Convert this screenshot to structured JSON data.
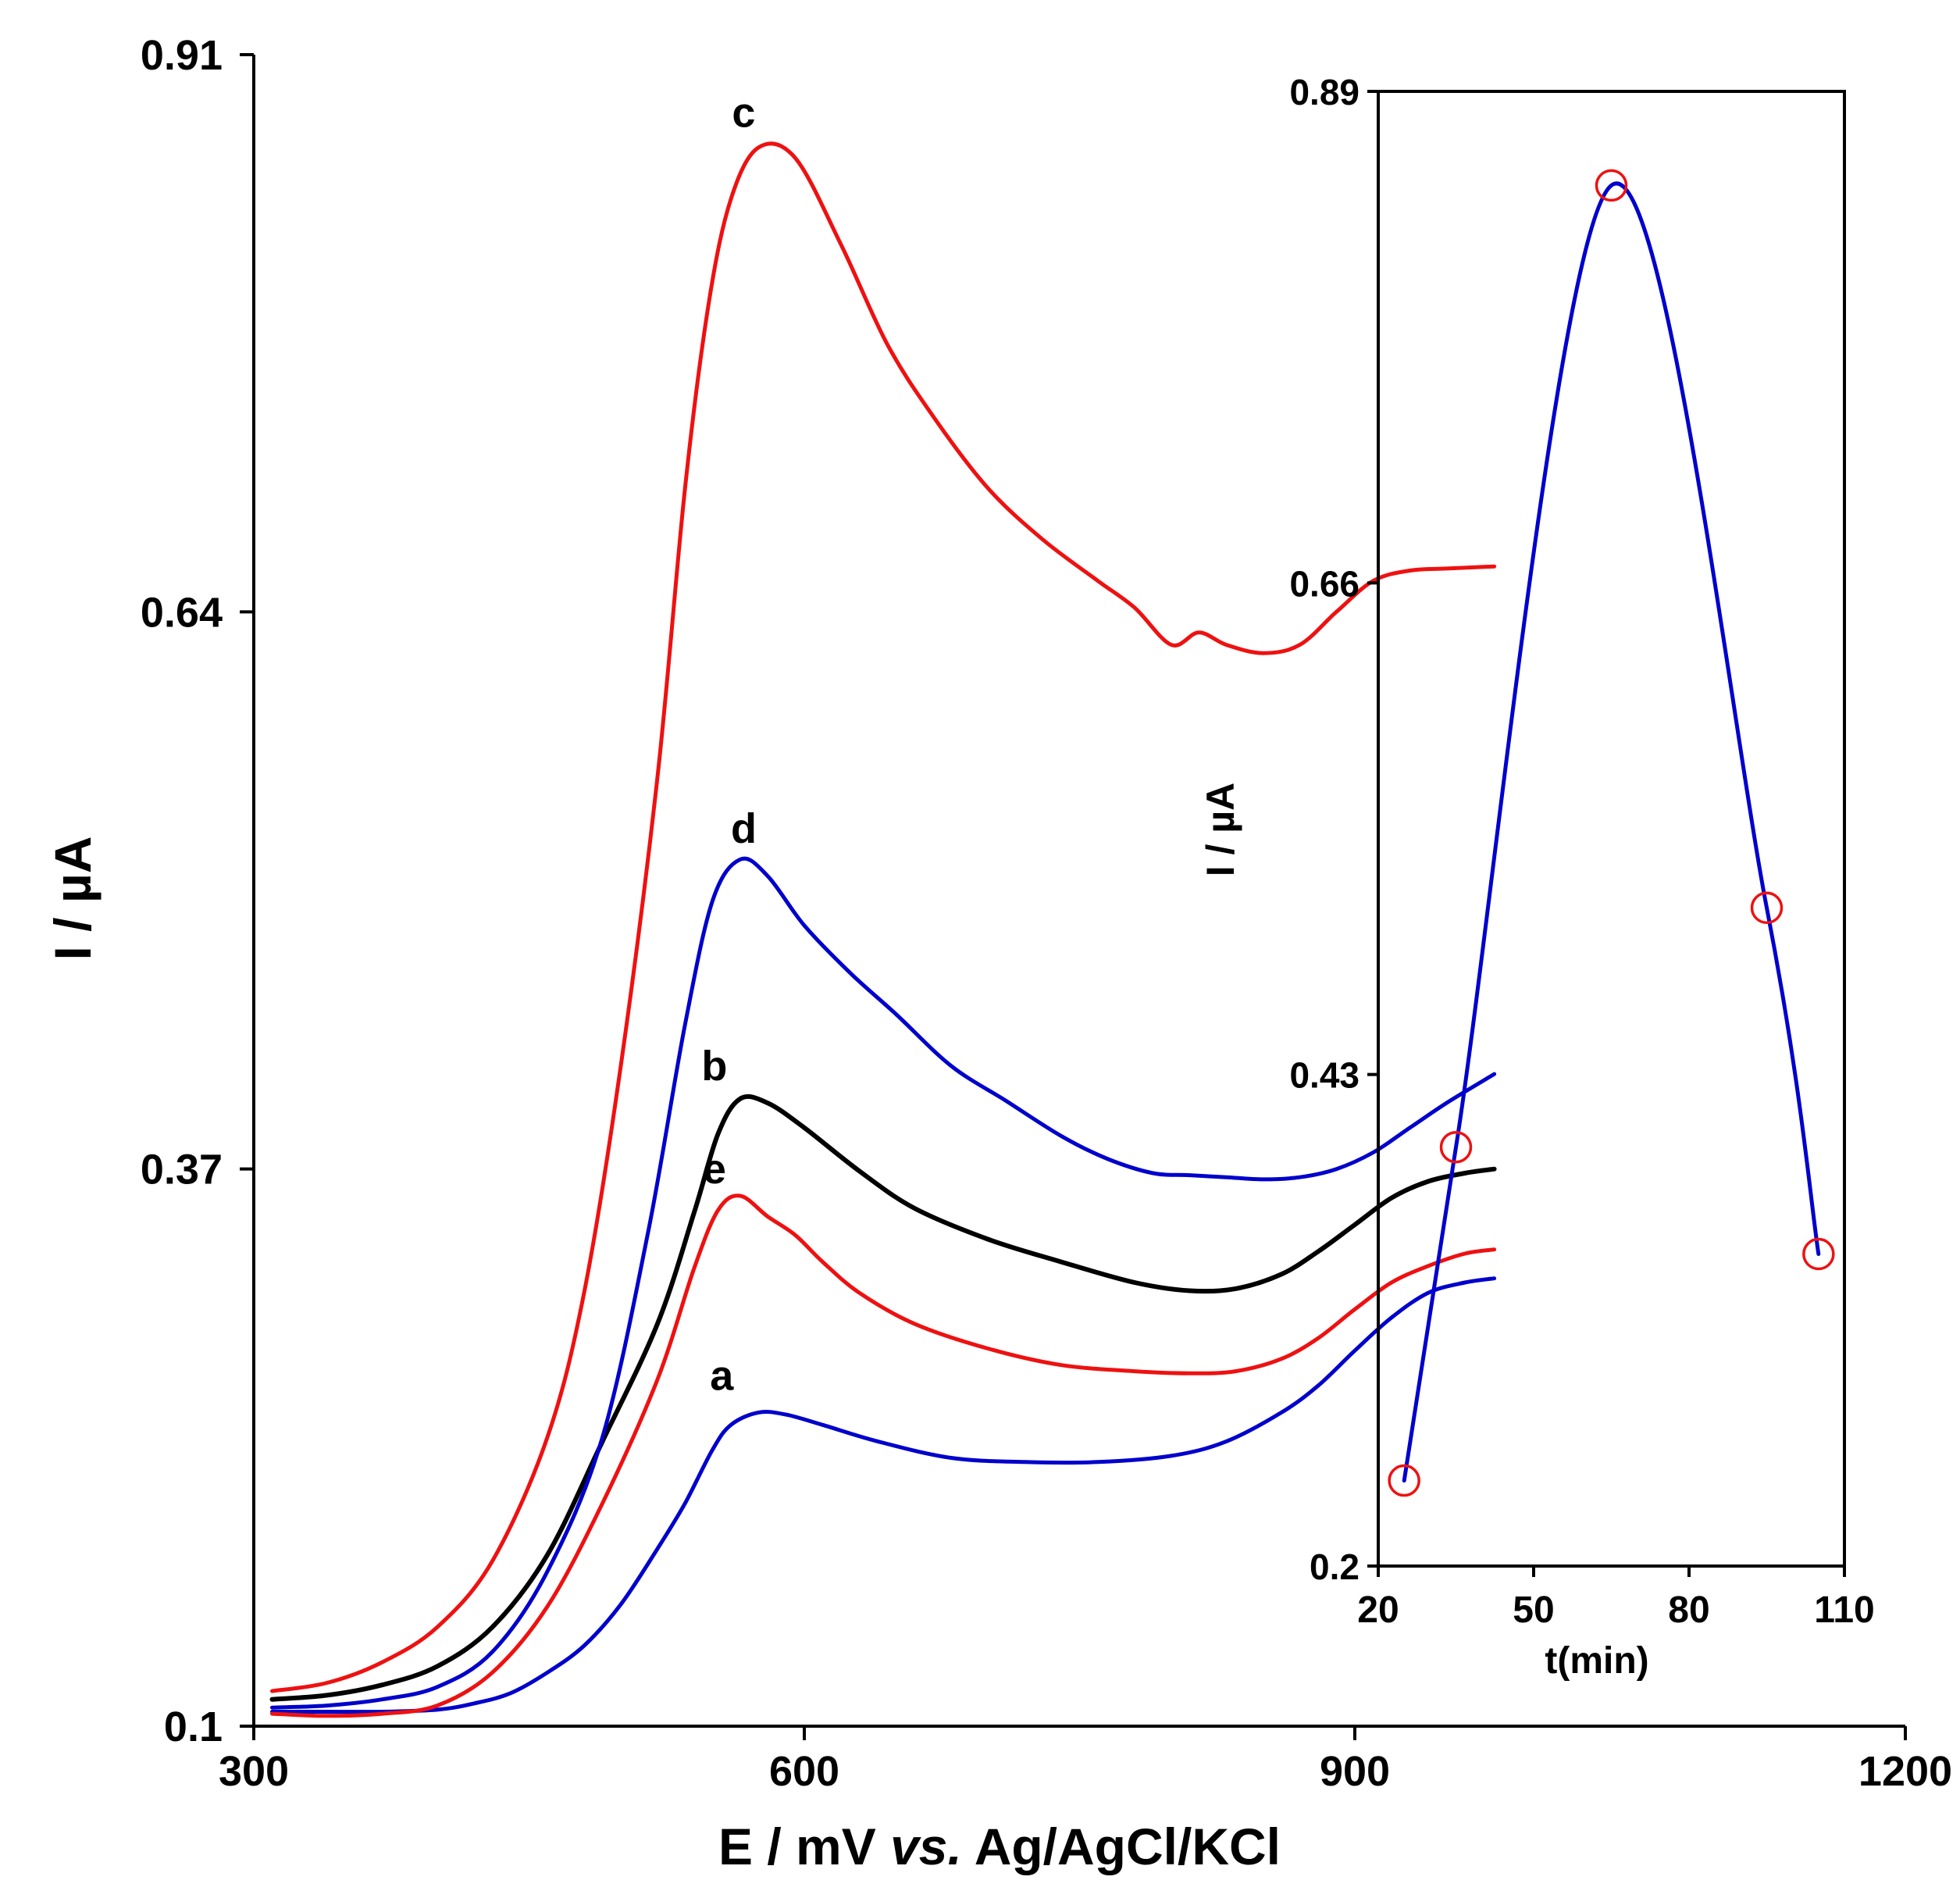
{
  "chart_data": [
    {
      "type": "line",
      "title": "",
      "xlabel": "E / mV vs. Ag/AgCl/KCl",
      "xlabel_parts": {
        "prefix": "E / mV ",
        "italic": "vs.",
        "suffix": " Ag/AgCl/KCl"
      },
      "ylabel": "I / µA",
      "xlim": [
        300,
        1200
      ],
      "ylim": [
        0.1,
        0.91
      ],
      "xticks": [
        300,
        600,
        900,
        1200
      ],
      "xtick_labels": [
        "300",
        "600",
        "900",
        "1200"
      ],
      "yticks": [
        0.1,
        0.37,
        0.64,
        0.91
      ],
      "ytick_labels": [
        "0.1",
        "0.37",
        "0.64",
        "0.91"
      ],
      "grid": false,
      "series": [
        {
          "name": "a",
          "label": "a",
          "color": "#0000cc",
          "label_at": {
            "x": 555,
            "y": 0.263
          },
          "x": [
            310,
            340,
            370,
            400,
            420,
            440,
            460,
            480,
            500,
            520,
            535,
            550,
            560,
            575,
            590,
            610,
            640,
            680,
            720,
            760,
            800,
            830,
            860,
            880,
            900,
            920,
            940,
            960,
            976
          ],
          "y": [
            0.107,
            0.107,
            0.107,
            0.108,
            0.111,
            0.116,
            0.126,
            0.139,
            0.159,
            0.186,
            0.208,
            0.234,
            0.246,
            0.252,
            0.251,
            0.246,
            0.238,
            0.23,
            0.228,
            0.228,
            0.231,
            0.238,
            0.252,
            0.265,
            0.282,
            0.298,
            0.31,
            0.315,
            0.317
          ]
        },
        {
          "name": "b",
          "label": "b",
          "color": "#000000",
          "label_at": {
            "x": 551,
            "y": 0.413
          },
          "x": [
            310,
            340,
            370,
            400,
            430,
            460,
            490,
            520,
            540,
            553,
            565,
            580,
            600,
            630,
            660,
            700,
            740,
            780,
            810,
            835,
            860,
            880,
            900,
            920,
            940,
            960,
            976
          ],
          "y": [
            0.113,
            0.115,
            0.12,
            0.129,
            0.148,
            0.183,
            0.238,
            0.295,
            0.349,
            0.387,
            0.404,
            0.402,
            0.39,
            0.369,
            0.351,
            0.336,
            0.325,
            0.315,
            0.311,
            0.312,
            0.319,
            0.33,
            0.343,
            0.356,
            0.364,
            0.368,
            0.37
          ]
        },
        {
          "name": "c",
          "label": "c",
          "color": "#ee1111",
          "label_at": {
            "x": 567,
            "y": 0.875
          },
          "x": [
            310,
            340,
            370,
            400,
            430,
            460,
            480,
            500,
            520,
            535,
            548,
            560,
            575,
            595,
            620,
            645,
            670,
            700,
            730,
            760,
            780,
            800,
            815,
            830,
            850,
            870,
            890,
            910,
            930,
            950,
            976
          ],
          "y": [
            0.117,
            0.121,
            0.131,
            0.148,
            0.18,
            0.24,
            0.31,
            0.42,
            0.56,
            0.7,
            0.79,
            0.84,
            0.865,
            0.86,
            0.818,
            0.77,
            0.735,
            0.7,
            0.675,
            0.655,
            0.642,
            0.624,
            0.63,
            0.624,
            0.62,
            0.624,
            0.64,
            0.655,
            0.66,
            0.661,
            0.662
          ]
        },
        {
          "name": "d",
          "label": "d",
          "color": "#0000cc",
          "label_at": {
            "x": 567,
            "y": 0.528
          },
          "x": [
            310,
            340,
            370,
            400,
            430,
            460,
            490,
            515,
            535,
            550,
            565,
            580,
            600,
            625,
            650,
            680,
            710,
            740,
            765,
            790,
            810,
            830,
            850,
            870,
            890,
            910,
            930,
            950,
            976
          ],
          "y": [
            0.109,
            0.11,
            0.113,
            0.119,
            0.136,
            0.175,
            0.24,
            0.34,
            0.44,
            0.5,
            0.52,
            0.512,
            0.488,
            0.465,
            0.445,
            0.42,
            0.403,
            0.386,
            0.375,
            0.368,
            0.367,
            0.366,
            0.365,
            0.366,
            0.37,
            0.378,
            0.39,
            0.402,
            0.416
          ]
        },
        {
          "name": "e",
          "label": "e",
          "color": "#ee1111",
          "label_at": {
            "x": 551,
            "y": 0.363
          },
          "x": [
            310,
            340,
            370,
            400,
            430,
            460,
            490,
            520,
            540,
            553,
            565,
            580,
            595,
            610,
            630,
            660,
            700,
            740,
            780,
            810,
            835,
            860,
            880,
            900,
            920,
            940,
            960,
            976
          ],
          "y": [
            0.106,
            0.105,
            0.106,
            0.11,
            0.126,
            0.158,
            0.208,
            0.268,
            0.322,
            0.35,
            0.357,
            0.347,
            0.338,
            0.325,
            0.31,
            0.295,
            0.283,
            0.275,
            0.272,
            0.271,
            0.272,
            0.278,
            0.288,
            0.302,
            0.315,
            0.323,
            0.329,
            0.331
          ]
        }
      ]
    },
    {
      "type": "line",
      "title": "",
      "inset": true,
      "xlabel": "t(min)",
      "ylabel": "I / µA",
      "xlim": [
        20,
        110
      ],
      "ylim": [
        0.2,
        0.89
      ],
      "xticks": [
        20,
        50,
        80,
        110
      ],
      "xtick_labels": [
        "20",
        "50",
        "80",
        "110"
      ],
      "yticks": [
        0.2,
        0.43,
        0.66,
        0.89
      ],
      "ytick_labels": [
        "0.2",
        "0.43",
        "0.66",
        "0.89"
      ],
      "grid": false,
      "line_color": "#0000cc",
      "marker_color": "#ee1111",
      "marker": "open-circle",
      "points": {
        "x": [
          25,
          35,
          65,
          95,
          105
        ],
        "y": [
          0.24,
          0.396,
          0.846,
          0.508,
          0.346
        ]
      }
    }
  ]
}
